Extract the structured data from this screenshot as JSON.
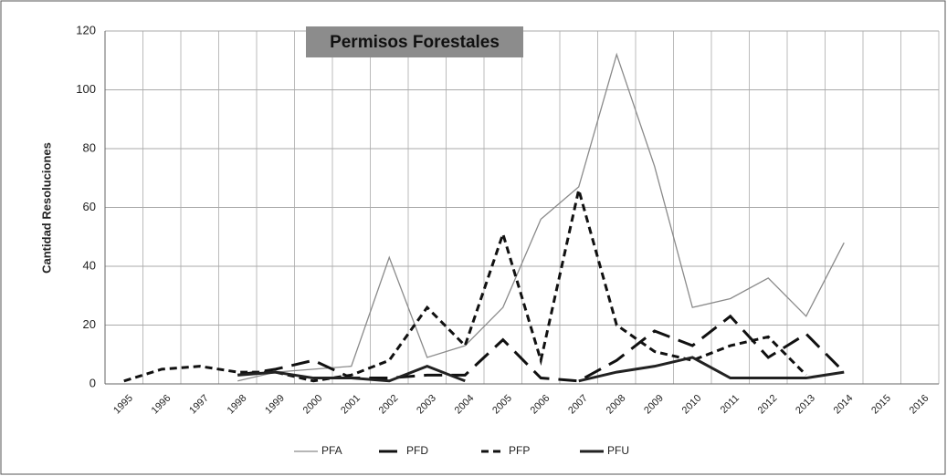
{
  "chart_data": {
    "type": "line",
    "title": "Permisos Forestales",
    "y_label": "Cantidad Resoluciones",
    "categories": [
      "1995",
      "1996",
      "1997",
      "1998",
      "1999",
      "2000",
      "2001",
      "2002",
      "2003",
      "2004",
      "2005",
      "2006",
      "2007",
      "2008",
      "2009",
      "2010",
      "2011",
      "2012",
      "2013",
      "2014",
      "2015",
      "2016"
    ],
    "series": [
      {
        "name": "PFA",
        "color": "#8a8a8a",
        "line_style": "thin",
        "values": [
          null,
          null,
          null,
          1,
          4,
          5,
          6,
          43,
          9,
          13,
          26,
          56,
          67,
          112,
          74,
          26,
          29,
          36,
          23,
          48,
          null,
          null
        ]
      },
      {
        "name": "PFD",
        "color": "#111111",
        "line_style": "long-dash",
        "values": [
          null,
          null,
          null,
          3,
          5,
          8,
          2,
          2,
          3,
          3,
          15,
          2,
          1,
          8,
          18,
          13,
          23,
          9,
          17,
          4,
          null,
          null
        ]
      },
      {
        "name": "PFP",
        "color": "#111111",
        "line_style": "short-dash",
        "values": [
          1,
          5,
          6,
          4,
          4,
          1,
          3,
          8,
          26,
          13,
          51,
          8,
          66,
          20,
          11,
          8,
          13,
          16,
          3,
          null,
          null,
          null
        ]
      },
      {
        "name": "PFU",
        "color": "#222222",
        "line_style": "thick",
        "values": [
          null,
          null,
          null,
          3,
          4,
          2,
          2,
          1,
          6,
          1,
          null,
          null,
          1,
          4,
          6,
          9,
          2,
          2,
          2,
          4,
          null,
          null
        ]
      }
    ],
    "ylim": [
      0,
      120
    ],
    "yticks": [
      0,
      20,
      40,
      60,
      80,
      100,
      120
    ],
    "grid": true,
    "legend": "bottom"
  }
}
